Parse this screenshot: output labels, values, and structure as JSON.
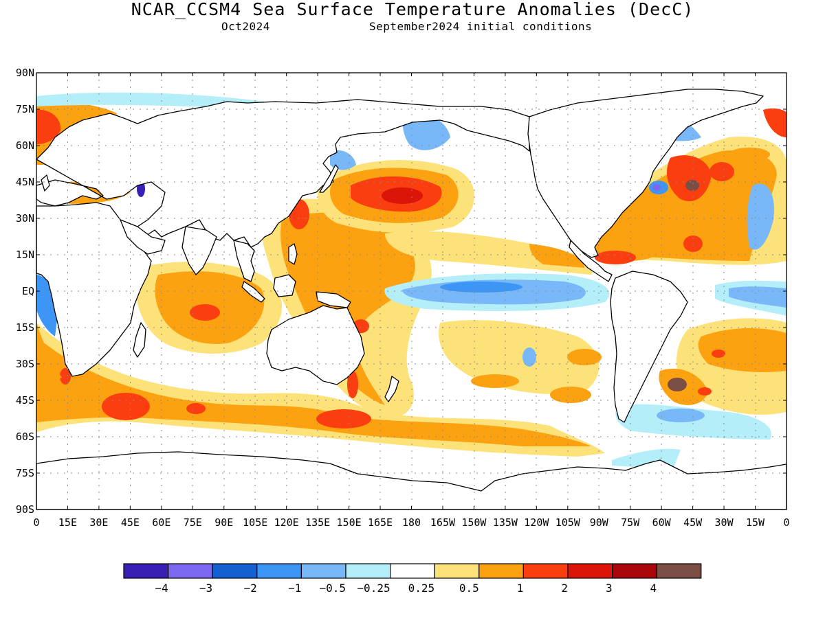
{
  "title": "NCAR_CCSM4 Sea Surface Temperature Anomalies (DecC)",
  "subtitle_left": "Oct2024",
  "subtitle_right": "September2024 initial conditions",
  "map": {
    "lat_labels": [
      "90N",
      "75N",
      "60N",
      "45N",
      "30N",
      "15N",
      "EQ",
      "15S",
      "30S",
      "45S",
      "60S",
      "75S",
      "90S"
    ],
    "lon_labels": [
      "0",
      "15E",
      "30E",
      "45E",
      "60E",
      "75E",
      "90E",
      "105E",
      "120E",
      "135E",
      "150E",
      "165E",
      "180",
      "165W",
      "150W",
      "135W",
      "120W",
      "105W",
      "90W",
      "75W",
      "60W",
      "45W",
      "30W",
      "15W",
      "0"
    ]
  },
  "colorbar": {
    "colors": [
      "#3a1fb5",
      "#7b68ee",
      "#1560d0",
      "#3d96f5",
      "#79b8f8",
      "#b3eef9",
      "#ffffff",
      "#fde27a",
      "#fca10f",
      "#fb3e0f",
      "#dd1408",
      "#a8060a",
      "#7a4e44"
    ],
    "labels": [
      "−4",
      "−3",
      "−2",
      "−1",
      "−0.5",
      "−0.25",
      "0.25",
      "0.5",
      "1",
      "2",
      "3",
      "4"
    ]
  }
}
